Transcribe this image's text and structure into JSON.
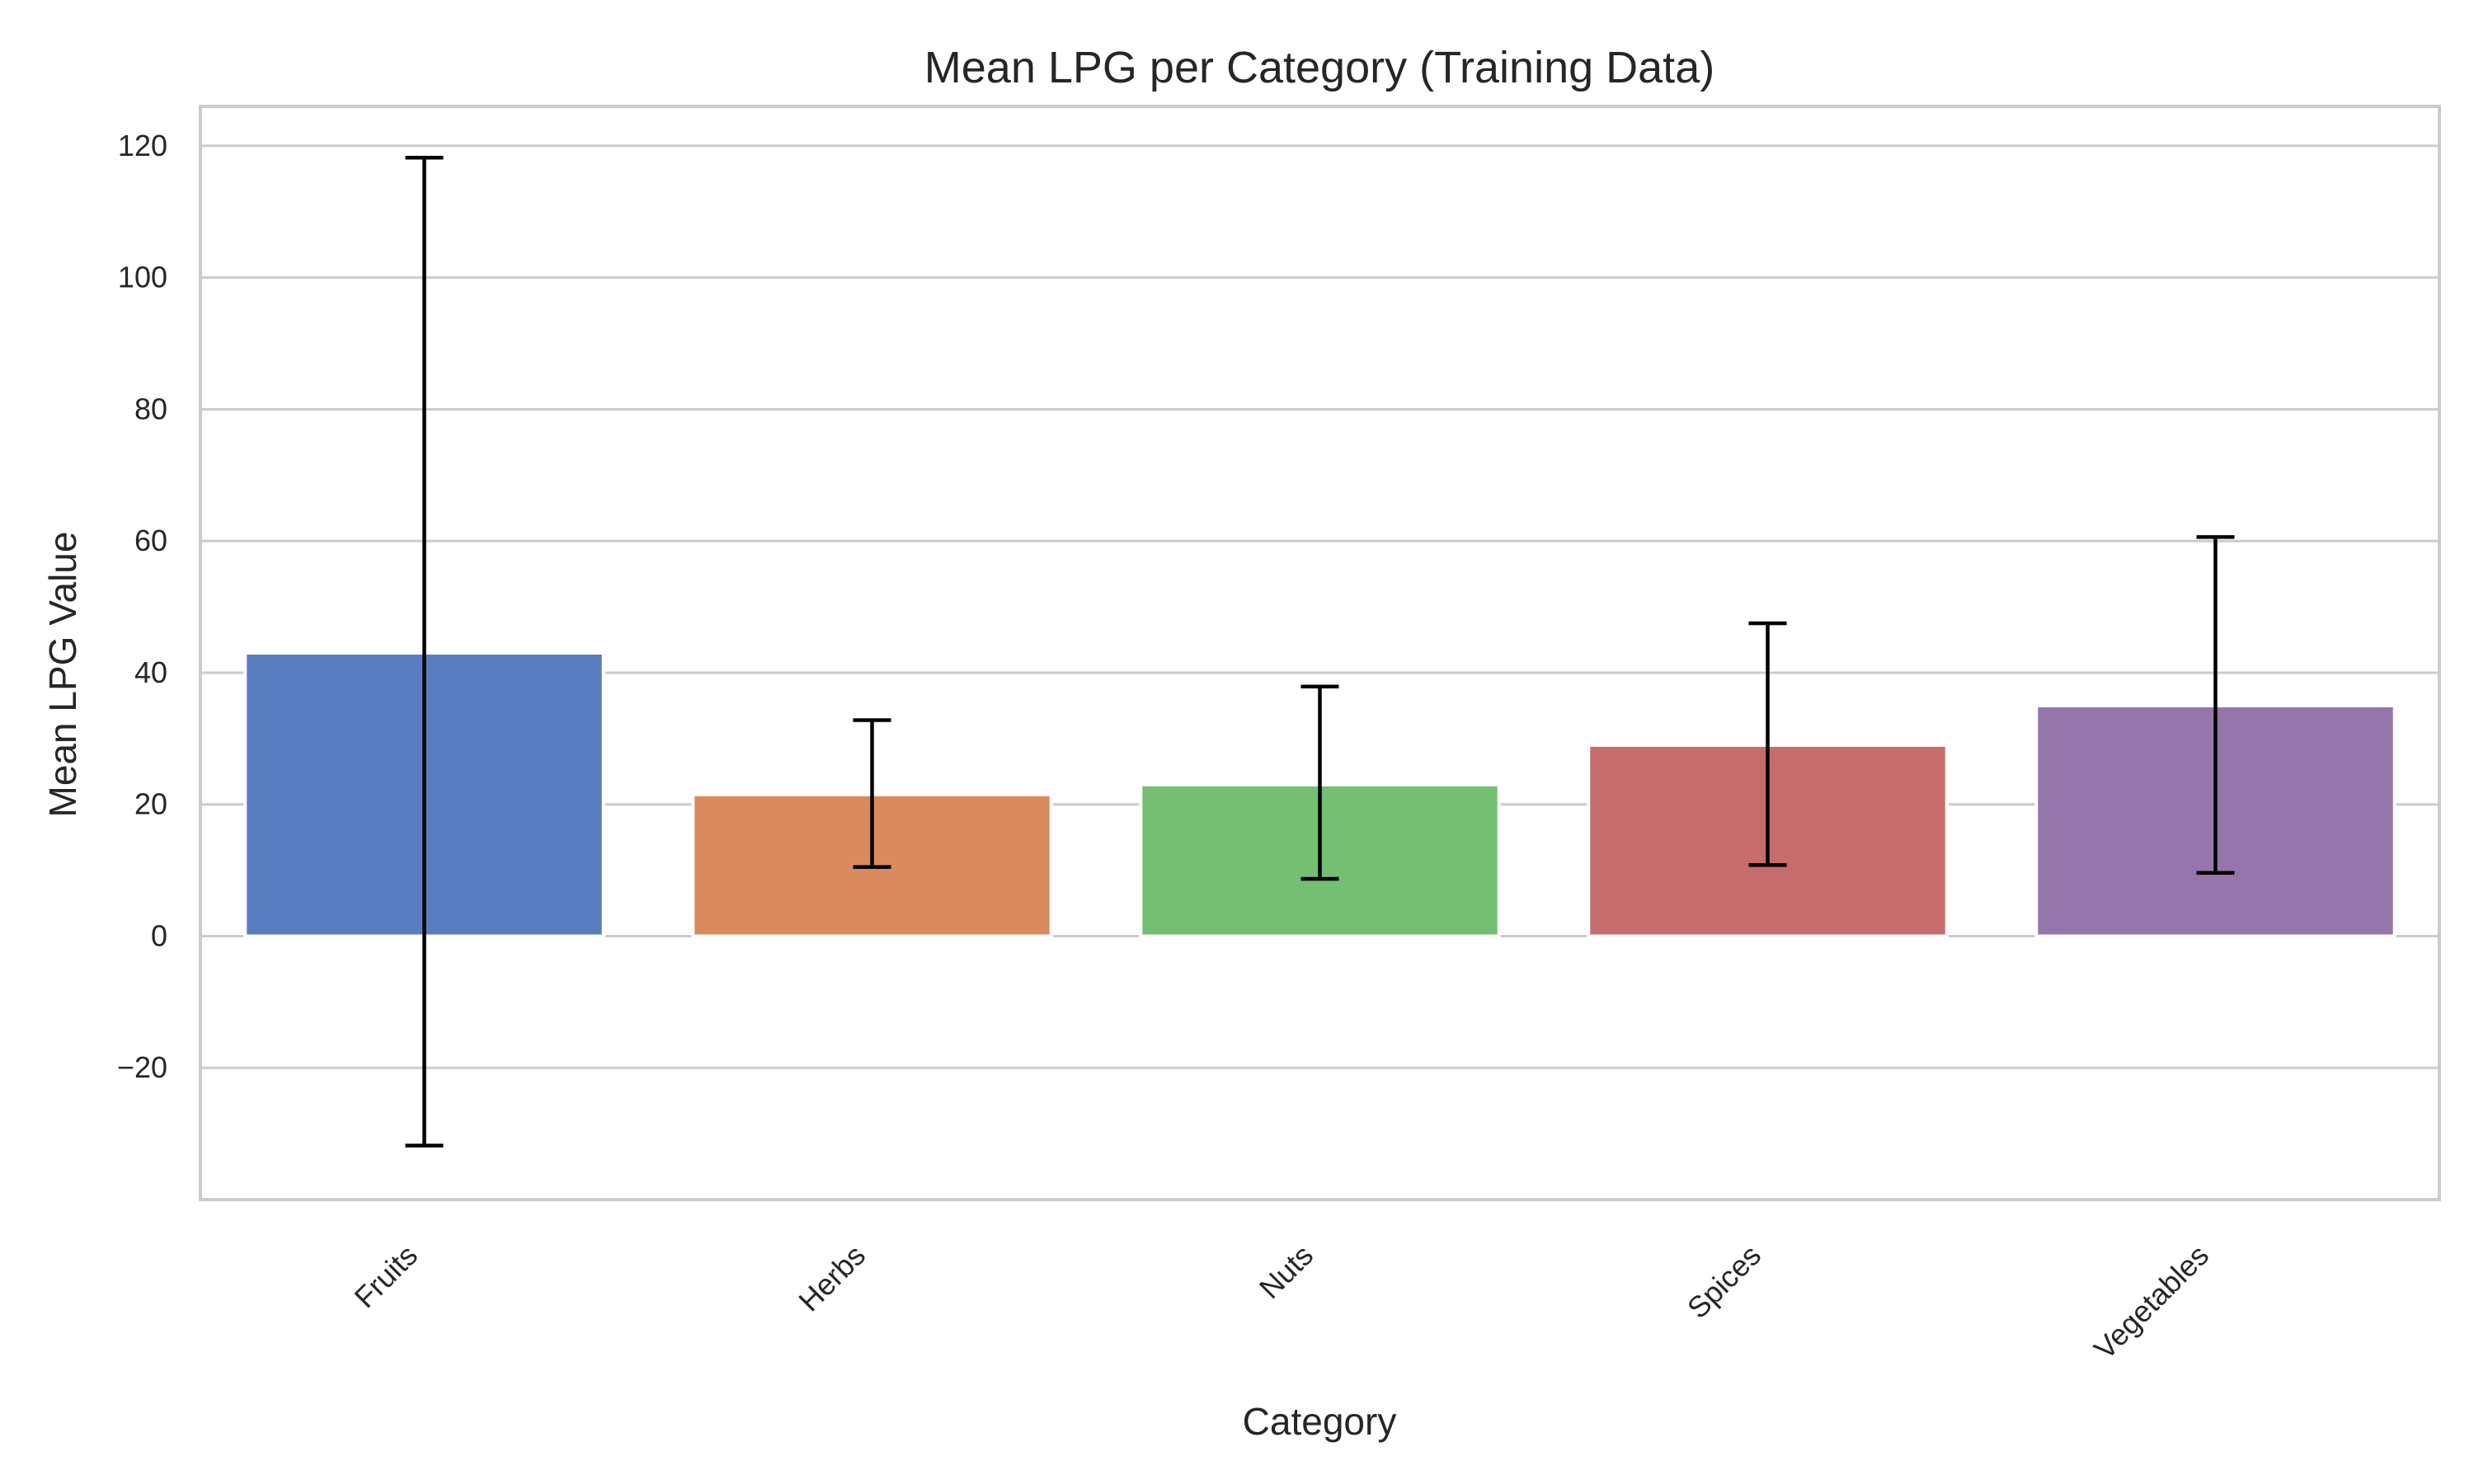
{
  "chart_data": {
    "type": "bar",
    "title": "Mean LPG per Category (Training Data)",
    "xlabel": "Category",
    "ylabel": "Mean LPG Value",
    "categories": [
      "Fruits",
      "Herbs",
      "Nuts",
      "Spices",
      "Vegetables"
    ],
    "values": [
      43.0,
      21.5,
      23.0,
      29.0,
      35.0
    ],
    "error_low": [
      -31.8,
      10.5,
      8.7,
      10.8,
      9.6
    ],
    "error_high": [
      118.2,
      32.8,
      37.9,
      47.5,
      60.6
    ],
    "colors": [
      "#5a7dbf",
      "#d98b5f",
      "#74bf72",
      "#c66c6c",
      "#9476ab"
    ],
    "ylim": [
      -40,
      126
    ],
    "yticks": [
      -20,
      0,
      20,
      40,
      60,
      80,
      100,
      120
    ],
    "ytick_labels": [
      "−20",
      "0",
      "20",
      "40",
      "60",
      "80",
      "100",
      "120"
    ],
    "grid": "horizontal",
    "legend": "none"
  }
}
